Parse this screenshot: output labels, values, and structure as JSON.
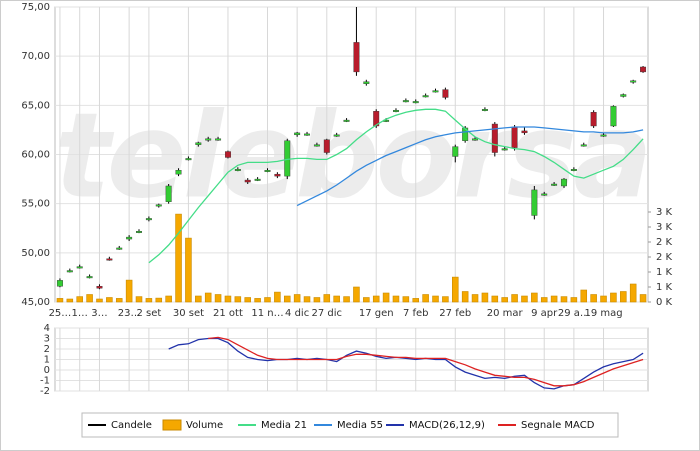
{
  "chart_data": [
    {
      "type": "candlestick",
      "watermark": "teleborsa",
      "categories": [
        "25…",
        null,
        "1…",
        null,
        "3…",
        null,
        null,
        "23…",
        null,
        "2 set",
        null,
        null,
        null,
        "30 set",
        null,
        null,
        null,
        "21 ott",
        null,
        null,
        null,
        "11 n…",
        null,
        null,
        "4 dic",
        null,
        null,
        "27 dic",
        null,
        null,
        null,
        null,
        "17 gen",
        null,
        null,
        null,
        "7 feb",
        null,
        null,
        null,
        "27 feb",
        null,
        null,
        null,
        null,
        "20 mar",
        null,
        null,
        null,
        "9 apr",
        null,
        null,
        "29 a…",
        null,
        null,
        "19 mag",
        null,
        null,
        null,
        null
      ],
      "up_color": "#33cc33",
      "down_color": "#b81c2c",
      "series": [
        {
          "name": "Candele",
          "type": "candlestick",
          "color": "#000000",
          "open": [
            46.6,
            48.2,
            48.6,
            47.6,
            46.6,
            49.4,
            50.5,
            51.4,
            52.2,
            53.4,
            54.8,
            55.2,
            58.0,
            59.6,
            61.0,
            61.6,
            61.6,
            60.3,
            58.5,
            57.4,
            57.5,
            58.4,
            58.0,
            57.8,
            62.0,
            62.1,
            61.0,
            61.5,
            62.0,
            63.5,
            71.4,
            67.2,
            64.4,
            63.5,
            64.5,
            65.5,
            65.4,
            66.0,
            66.5,
            66.6,
            59.8,
            61.4,
            61.6,
            64.6,
            63.1,
            60.6,
            62.8,
            62.4,
            53.8,
            56.0,
            57.0,
            56.8,
            58.5,
            61.0,
            64.3,
            62.0,
            62.9,
            65.9,
            67.4,
            68.9
          ],
          "high": [
            47.4,
            48.4,
            48.8,
            47.8,
            46.8,
            49.6,
            50.7,
            51.8,
            52.4,
            53.7,
            55.0,
            57.0,
            58.6,
            59.8,
            61.3,
            61.8,
            61.8,
            60.4,
            58.7,
            57.6,
            57.7,
            58.6,
            58.2,
            61.6,
            62.3,
            62.3,
            61.2,
            61.6,
            62.2,
            63.7,
            75.0,
            67.6,
            64.6,
            63.7,
            64.7,
            65.7,
            65.6,
            66.2,
            66.7,
            66.8,
            61.0,
            62.9,
            61.8,
            64.8,
            63.3,
            60.8,
            63.0,
            62.8,
            56.8,
            56.2,
            57.2,
            57.6,
            58.7,
            61.2,
            64.5,
            62.2,
            65.0,
            66.2,
            67.6,
            69.0
          ],
          "low": [
            46.5,
            48.0,
            48.4,
            47.4,
            46.3,
            49.2,
            50.3,
            51.2,
            52.0,
            53.2,
            54.6,
            55.0,
            57.8,
            59.4,
            60.8,
            61.3,
            61.4,
            59.6,
            58.3,
            57.0,
            57.3,
            58.2,
            57.6,
            57.5,
            61.8,
            61.9,
            60.8,
            60.0,
            61.8,
            63.3,
            68.0,
            67.0,
            62.7,
            63.3,
            64.3,
            65.3,
            65.2,
            65.8,
            66.3,
            65.6,
            59.2,
            61.2,
            61.4,
            64.4,
            59.8,
            60.4,
            60.4,
            62.0,
            53.4,
            55.8,
            56.8,
            56.6,
            58.3,
            60.8,
            62.7,
            61.8,
            62.8,
            65.8,
            67.2,
            68.3
          ],
          "close": [
            47.2,
            48.2,
            48.6,
            47.6,
            46.4,
            49.3,
            50.5,
            51.6,
            52.2,
            53.5,
            54.9,
            56.8,
            58.4,
            59.6,
            61.2,
            61.6,
            61.6,
            59.7,
            58.5,
            57.2,
            57.5,
            58.4,
            57.8,
            61.4,
            62.2,
            62.1,
            61.0,
            60.2,
            62.0,
            63.5,
            68.4,
            67.4,
            62.9,
            63.5,
            64.5,
            65.5,
            65.4,
            66.0,
            66.5,
            65.8,
            60.8,
            62.7,
            61.6,
            64.6,
            60.2,
            60.6,
            60.7,
            62.2,
            56.4,
            56.0,
            57.0,
            57.5,
            58.5,
            61.0,
            62.9,
            62.0,
            64.9,
            66.1,
            67.5,
            68.4
          ]
        },
        {
          "name": "Volume",
          "type": "bar",
          "axis": "y2",
          "color": "#f5a800",
          "values": [
            120,
            100,
            180,
            250,
            100,
            150,
            120,
            730,
            180,
            120,
            130,
            200,
            2930,
            2130,
            200,
            300,
            250,
            200,
            180,
            150,
            120,
            150,
            330,
            200,
            250,
            180,
            150,
            250,
            200,
            180,
            500,
            150,
            200,
            300,
            200,
            180,
            120,
            250,
            200,
            180,
            830,
            350,
            250,
            300,
            200,
            150,
            250,
            200,
            300,
            150,
            200,
            180,
            150,
            400,
            250,
            200,
            300,
            350,
            600,
            250
          ]
        },
        {
          "name": "Media 21",
          "type": "line",
          "color": "#44dd88",
          "values": [
            null,
            null,
            null,
            null,
            null,
            null,
            null,
            null,
            null,
            49.0,
            49.8,
            50.8,
            52.0,
            53.3,
            54.6,
            55.8,
            57.0,
            58.2,
            58.9,
            59.2,
            59.2,
            59.2,
            59.3,
            59.5,
            59.6,
            59.6,
            59.5,
            59.5,
            60.0,
            60.6,
            61.5,
            62.3,
            63.0,
            63.6,
            64.0,
            64.3,
            64.5,
            64.6,
            64.6,
            64.4,
            63.5,
            62.6,
            61.8,
            61.3,
            61.0,
            60.8,
            60.6,
            60.5,
            60.3,
            59.8,
            59.2,
            58.5,
            57.8,
            57.6,
            58.0,
            58.4,
            58.8,
            59.5,
            60.5,
            61.6
          ]
        },
        {
          "name": "Media 55",
          "type": "line",
          "color": "#3388dd",
          "values": [
            null,
            null,
            null,
            null,
            null,
            null,
            null,
            null,
            null,
            null,
            null,
            null,
            null,
            null,
            null,
            null,
            null,
            null,
            null,
            null,
            null,
            null,
            null,
            null,
            54.8,
            55.3,
            55.8,
            56.3,
            56.9,
            57.6,
            58.3,
            58.9,
            59.4,
            59.9,
            60.3,
            60.7,
            61.1,
            61.5,
            61.8,
            62.0,
            62.2,
            62.3,
            62.4,
            62.5,
            62.6,
            62.7,
            62.8,
            62.8,
            62.8,
            62.7,
            62.6,
            62.5,
            62.4,
            62.3,
            62.3,
            62.2,
            62.2,
            62.2,
            62.3,
            62.5
          ]
        }
      ],
      "ylim": [
        45,
        75
      ],
      "yticks": [
        {
          "value": 45,
          "label": "45,00"
        },
        {
          "value": 50,
          "label": "50,00"
        },
        {
          "value": 55,
          "label": "55,00"
        },
        {
          "value": 60,
          "label": "60,00"
        },
        {
          "value": 65,
          "label": "65,00"
        },
        {
          "value": 70,
          "label": "70,00"
        },
        {
          "value": 75,
          "label": "75,00"
        }
      ],
      "y2lim": [
        0,
        3000
      ],
      "y2ticks": [
        {
          "value": 0,
          "label": "0 K"
        },
        {
          "value": 500,
          "label": "1 K"
        },
        {
          "value": 1000,
          "label": "1 K"
        },
        {
          "value": 1500,
          "label": "2 K"
        },
        {
          "value": 2000,
          "label": "2 K"
        },
        {
          "value": 2500,
          "label": "3 K"
        },
        {
          "value": 3000,
          "label": "3 K"
        }
      ],
      "grid": true
    },
    {
      "type": "line",
      "series": [
        {
          "name": "MACD(26,12,9)",
          "color": "#2233aa",
          "values": [
            null,
            null,
            null,
            null,
            null,
            null,
            null,
            null,
            null,
            null,
            null,
            2.0,
            2.4,
            2.5,
            2.9,
            3.0,
            3.0,
            2.6,
            1.8,
            1.2,
            1.0,
            0.9,
            1.0,
            1.0,
            1.1,
            1.0,
            1.1,
            1.0,
            0.8,
            1.4,
            1.8,
            1.6,
            1.3,
            1.1,
            1.2,
            1.1,
            1.0,
            1.1,
            1.0,
            1.0,
            0.3,
            -0.2,
            -0.5,
            -0.8,
            -0.7,
            -0.8,
            -0.6,
            -0.5,
            -1.2,
            -1.7,
            -1.8,
            -1.5,
            -1.4,
            -0.8,
            -0.2,
            0.3,
            0.6,
            0.8,
            1.0,
            1.6
          ]
        },
        {
          "name": "Segnale MACD",
          "color": "#dd2222",
          "values": [
            null,
            null,
            null,
            null,
            null,
            null,
            null,
            null,
            null,
            null,
            null,
            null,
            null,
            null,
            null,
            3.0,
            3.1,
            2.9,
            2.4,
            1.9,
            1.4,
            1.1,
            1.0,
            1.0,
            1.0,
            1.0,
            1.0,
            1.0,
            1.0,
            1.3,
            1.5,
            1.5,
            1.4,
            1.3,
            1.2,
            1.2,
            1.1,
            1.1,
            1.1,
            1.1,
            0.8,
            0.5,
            0.1,
            -0.2,
            -0.5,
            -0.6,
            -0.7,
            -0.7,
            -0.9,
            -1.2,
            -1.5,
            -1.5,
            -1.4,
            -1.1,
            -0.7,
            -0.3,
            0.1,
            0.4,
            0.7,
            1.0
          ]
        }
      ],
      "ylim": [
        -2,
        4
      ],
      "yticks": [
        -2,
        -1,
        0,
        1,
        2,
        3,
        4
      ],
      "grid": true
    }
  ]
}
